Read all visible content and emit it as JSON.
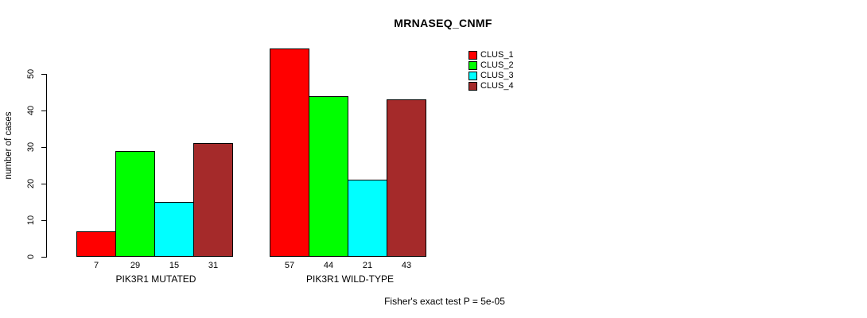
{
  "chart_data": {
    "type": "bar",
    "title": "MRNASEQ_CNMF",
    "ylabel": "number of cases",
    "xlabel": "",
    "categories": [
      "PIK3R1 MUTATED",
      "PIK3R1 WILD-TYPE"
    ],
    "series": [
      {
        "name": "CLUS_1",
        "color": "#ff0000",
        "values": [
          7,
          57
        ]
      },
      {
        "name": "CLUS_2",
        "color": "#00ff00",
        "values": [
          29,
          44
        ]
      },
      {
        "name": "CLUS_3",
        "color": "#00ffff",
        "values": [
          15,
          21
        ]
      },
      {
        "name": "CLUS_4",
        "color": "#a52a2a",
        "values": [
          31,
          43
        ]
      }
    ],
    "yticks": [
      0,
      10,
      20,
      30,
      40,
      50
    ],
    "ylim": [
      0,
      57
    ],
    "grid": false,
    "bar_value_labels_shown": true,
    "legend_position": "top-right",
    "annotation": "Fisher's exact test P = 5e-05",
    "axis_color": "#000000",
    "text_color": "#000000",
    "background_color": "#ffffff"
  }
}
